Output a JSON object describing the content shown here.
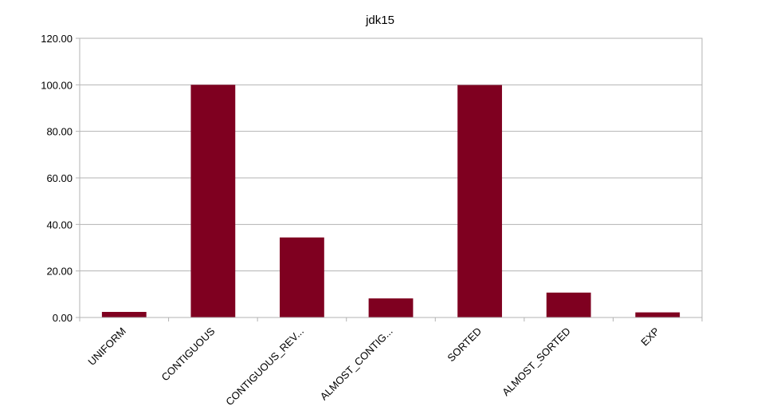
{
  "chart_data": {
    "type": "bar",
    "title": "jdk15",
    "categories": [
      "UNIFORM",
      "CONTIGUOUS",
      "CONTIGUOUS_REV...",
      "ALMOST_CONTIG...",
      "SORTED",
      "ALMOST_SORTED",
      "EXP"
    ],
    "values": [
      2.4,
      100.0,
      34.4,
      8.2,
      99.9,
      10.7,
      2.2
    ],
    "ylim": [
      0,
      120
    ],
    "yticks": [
      "0.00",
      "20.00",
      "40.00",
      "60.00",
      "80.00",
      "100.00",
      "120.00"
    ],
    "grid": true,
    "bar_color": "#7f0020",
    "grid_color": "#b3b3b3"
  }
}
